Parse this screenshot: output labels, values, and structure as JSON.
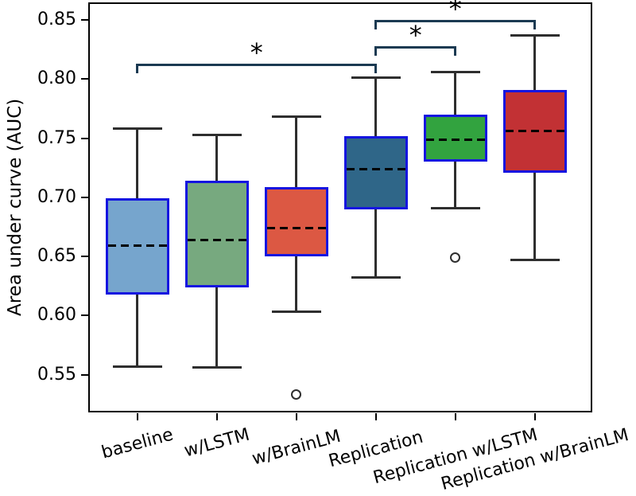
{
  "chart_data": {
    "type": "box",
    "title": "",
    "xlabel": "",
    "ylabel": "Area under curve (AUC)",
    "categories": [
      "baseline",
      "w/LSTM",
      "w/BrainLM",
      "Replication",
      "Replication w/LSTM",
      "Replication w/BrainLM"
    ],
    "ytick_values": [
      0.85,
      0.8,
      0.75,
      0.7,
      0.65,
      0.6,
      0.55
    ],
    "ytick_labels": [
      "0.85",
      "0.80",
      "0.75",
      "0.70",
      "0.65",
      "0.60",
      "0.55"
    ],
    "ylim": [
      0.518,
      0.865
    ],
    "grid": false,
    "legend": "none",
    "median_style": "dashed-black",
    "box_edge_color": "#1515e0",
    "whisker_color": "#2e2e2e",
    "bracket_color": "#1b3a52",
    "boxes": [
      {
        "label": "baseline",
        "whislo": 0.557,
        "q1": 0.618,
        "median": 0.659,
        "q3": 0.699,
        "whishi": 0.758,
        "fliers": [],
        "fill": "#76a5cd"
      },
      {
        "label": "w/LSTM",
        "whislo": 0.556,
        "q1": 0.624,
        "median": 0.664,
        "q3": 0.714,
        "whishi": 0.753,
        "fliers": [],
        "fill": "#77a97f"
      },
      {
        "label": "w/BrainLM",
        "whislo": 0.603,
        "q1": 0.65,
        "median": 0.674,
        "q3": 0.709,
        "whishi": 0.768,
        "fliers": [
          0.533
        ],
        "fill": "#dc5843"
      },
      {
        "label": "Replication",
        "whislo": 0.632,
        "q1": 0.69,
        "median": 0.724,
        "q3": 0.752,
        "whishi": 0.801,
        "fliers": [],
        "fill": "#2f6688"
      },
      {
        "label": "Replication w/LSTM",
        "whislo": 0.691,
        "q1": 0.73,
        "median": 0.749,
        "q3": 0.77,
        "whishi": 0.806,
        "fliers": [
          0.649
        ],
        "fill": "#32a33f"
      },
      {
        "label": "Replication w/BrainLM",
        "whislo": 0.647,
        "q1": 0.721,
        "median": 0.756,
        "q3": 0.791,
        "whishi": 0.837,
        "fliers": [],
        "fill": "#c23134"
      }
    ],
    "significance_brackets": [
      {
        "from": "baseline",
        "to": "Replication",
        "label": "*",
        "height": 0.812
      },
      {
        "from": "Replication",
        "to": "Replication w/LSTM",
        "label": "*",
        "height": 0.827
      },
      {
        "from": "Replication",
        "to": "Replication w/BrainLM",
        "label": "*",
        "height": 0.849
      }
    ]
  }
}
